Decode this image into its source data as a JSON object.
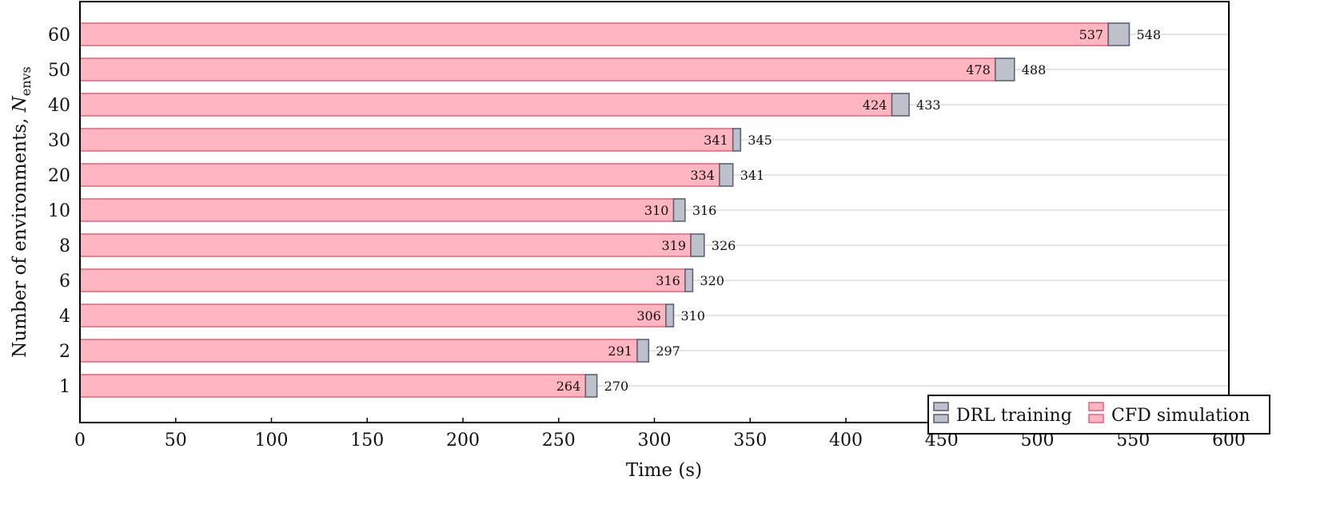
{
  "chart_data": {
    "type": "bar",
    "orientation": "horizontal",
    "stacked": true,
    "categories": [
      "1",
      "2",
      "4",
      "6",
      "8",
      "10",
      "20",
      "30",
      "40",
      "50",
      "60"
    ],
    "series": [
      {
        "name": "CFD simulation",
        "values": [
          264,
          291,
          306,
          316,
          319,
          310,
          334,
          341,
          424,
          478,
          537
        ],
        "color": "#ffb6c1",
        "edge": "#e8687e"
      },
      {
        "name": "DRL training",
        "values": [
          6,
          6,
          4,
          4,
          7,
          6,
          7,
          4,
          9,
          10,
          11
        ],
        "color": "#bfc1ca",
        "edge": "#5a6378"
      }
    ],
    "totals": [
      270,
      297,
      310,
      320,
      326,
      316,
      341,
      345,
      433,
      488,
      548
    ],
    "xlabel": "Time (s)",
    "ylabel_main": "Number of environments, ",
    "ylabel_italic": "N",
    "ylabel_sub": "envs",
    "xlim": [
      0,
      600
    ],
    "xticks": [
      0,
      50,
      100,
      150,
      200,
      250,
      300,
      350,
      400,
      450,
      500,
      550,
      600
    ],
    "grid": "horizontal",
    "legend_position": "bottom-right"
  }
}
